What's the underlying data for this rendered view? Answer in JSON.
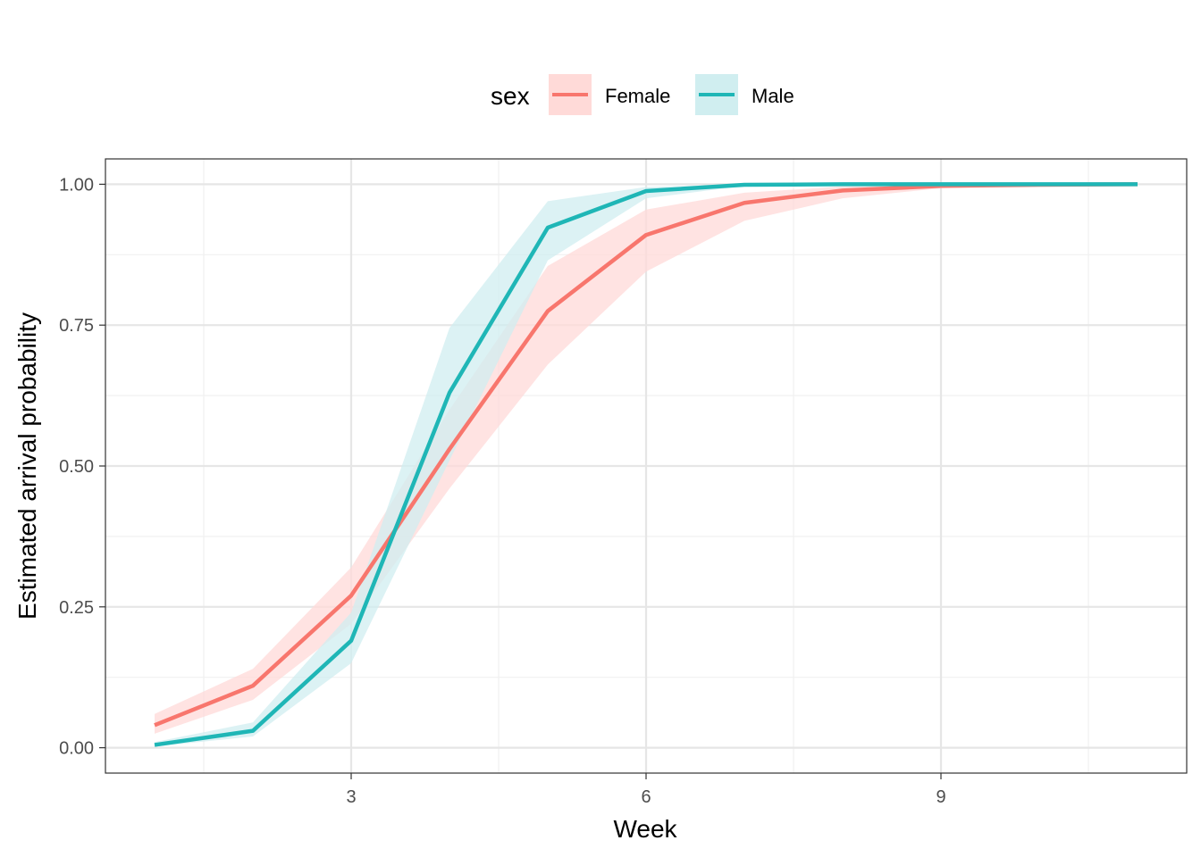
{
  "chart_data": {
    "type": "line",
    "xlabel": "Week",
    "ylabel": "Estimated arrival probability",
    "xlim": [
      0.5,
      11.5
    ],
    "ylim": [
      -0.045,
      1.045
    ],
    "x_ticks": [
      3,
      6,
      9
    ],
    "x_tick_labels": [
      "3",
      "6",
      "9"
    ],
    "y_ticks": [
      0,
      0.25,
      0.5,
      0.75,
      1.0
    ],
    "y_tick_labels": [
      "0.00",
      "0.25",
      "0.50",
      "0.75",
      "1.00"
    ],
    "grid": true,
    "legend": {
      "title": "sex",
      "position": "top",
      "entries": [
        "Female",
        "Male"
      ]
    },
    "x": [
      1,
      2,
      3,
      4,
      5,
      6,
      7,
      8,
      9,
      10,
      11
    ],
    "series": [
      {
        "name": "Female",
        "color": "#F8766D",
        "band_color": "#FFDAD8",
        "values": [
          0.04,
          0.11,
          0.27,
          0.53,
          0.775,
          0.91,
          0.967,
          0.989,
          0.997,
          0.999,
          1.0
        ],
        "lower": [
          0.025,
          0.085,
          0.22,
          0.46,
          0.68,
          0.845,
          0.935,
          0.975,
          0.993,
          0.998,
          1.0
        ],
        "upper": [
          0.06,
          0.14,
          0.32,
          0.6,
          0.855,
          0.955,
          0.985,
          0.996,
          0.999,
          1.0,
          1.0
        ]
      },
      {
        "name": "Male",
        "color": "#1FB6B6",
        "band_color": "#D0EEF0",
        "values": [
          0.005,
          0.03,
          0.19,
          0.63,
          0.923,
          0.988,
          0.999,
          1.0,
          1.0,
          1.0,
          1.0
        ],
        "lower": [
          0.002,
          0.02,
          0.15,
          0.51,
          0.865,
          0.975,
          0.997,
          0.999,
          1.0,
          1.0,
          1.0
        ],
        "upper": [
          0.01,
          0.045,
          0.24,
          0.745,
          0.97,
          0.995,
          1.0,
          1.0,
          1.0,
          1.0,
          1.0
        ]
      }
    ]
  }
}
